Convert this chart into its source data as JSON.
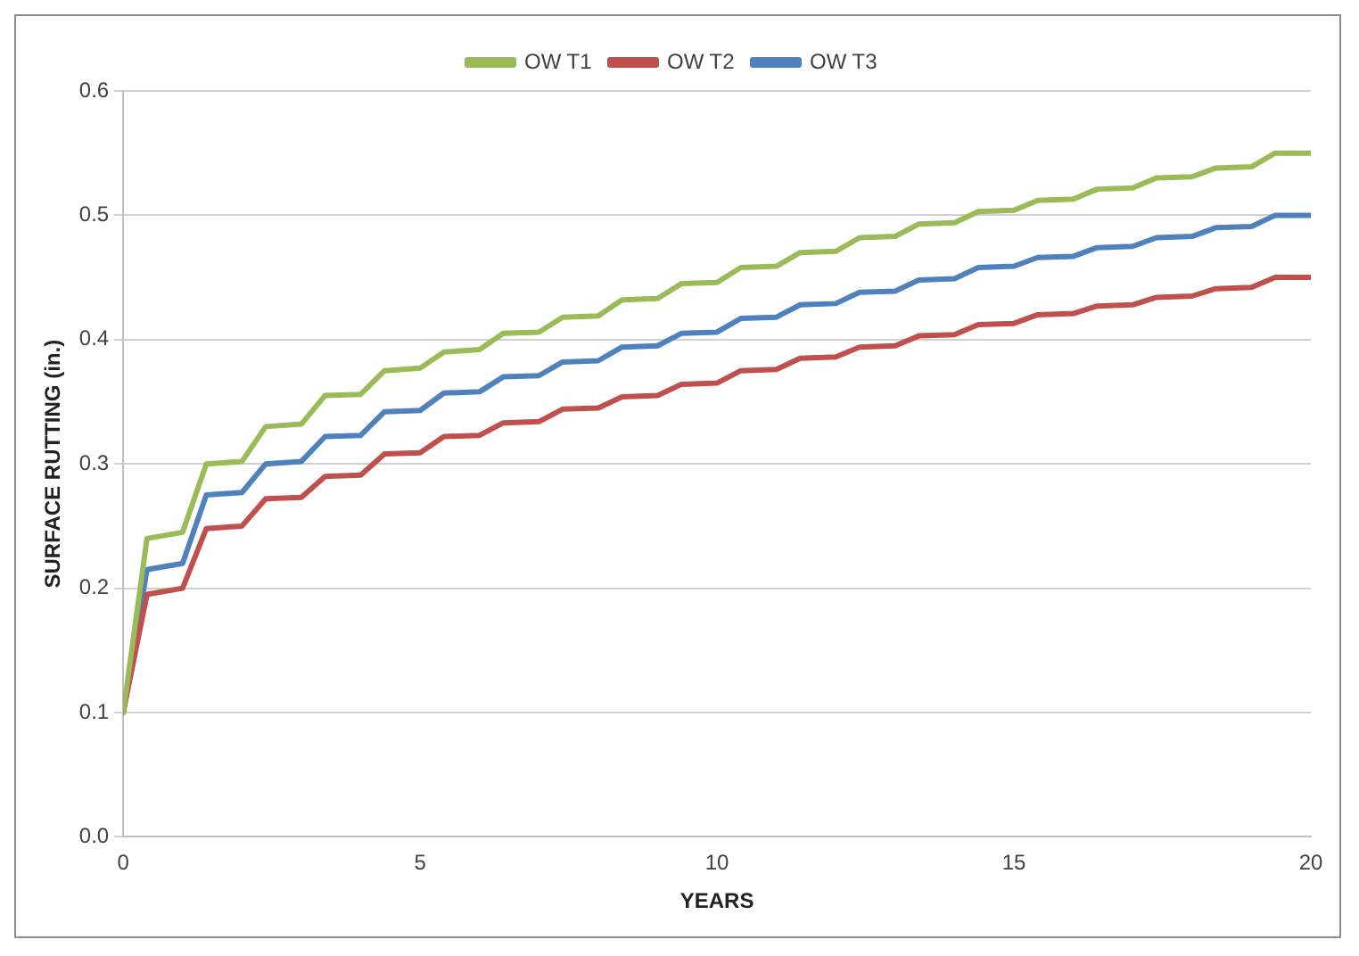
{
  "chart_data": {
    "type": "line",
    "xlabel": "YEARS",
    "ylabel": "SURFACE RUTTING (in.)",
    "x": [
      0,
      0.4,
      1,
      1.4,
      2,
      2.4,
      3,
      3.4,
      4,
      4.4,
      5,
      5.4,
      6,
      6.4,
      7,
      7.4,
      8,
      8.4,
      9,
      9.4,
      10,
      10.4,
      11,
      11.4,
      12,
      12.4,
      13,
      13.4,
      14,
      14.4,
      15,
      15.4,
      16,
      16.4,
      17,
      17.4,
      18,
      18.4,
      19,
      19.4,
      20
    ],
    "series": [
      {
        "name": "OW T1",
        "color": "#9bbb59",
        "values": [
          0.1,
          0.24,
          0.245,
          0.3,
          0.302,
          0.33,
          0.332,
          0.355,
          0.356,
          0.375,
          0.377,
          0.39,
          0.392,
          0.405,
          0.406,
          0.418,
          0.419,
          0.432,
          0.433,
          0.445,
          0.446,
          0.458,
          0.459,
          0.47,
          0.471,
          0.482,
          0.483,
          0.493,
          0.494,
          0.503,
          0.504,
          0.512,
          0.513,
          0.521,
          0.522,
          0.53,
          0.531,
          0.538,
          0.539,
          0.55,
          0.55
        ]
      },
      {
        "name": "OW T2",
        "color": "#c0504d",
        "values": [
          0.1,
          0.195,
          0.2,
          0.248,
          0.25,
          0.272,
          0.273,
          0.29,
          0.291,
          0.308,
          0.309,
          0.322,
          0.323,
          0.333,
          0.334,
          0.344,
          0.345,
          0.354,
          0.355,
          0.364,
          0.365,
          0.375,
          0.376,
          0.385,
          0.386,
          0.394,
          0.395,
          0.403,
          0.404,
          0.412,
          0.413,
          0.42,
          0.421,
          0.427,
          0.428,
          0.434,
          0.435,
          0.441,
          0.442,
          0.45,
          0.45
        ]
      },
      {
        "name": "OW T3",
        "color": "#4f81bd",
        "values": [
          0.1,
          0.215,
          0.22,
          0.275,
          0.277,
          0.3,
          0.302,
          0.322,
          0.323,
          0.342,
          0.343,
          0.357,
          0.358,
          0.37,
          0.371,
          0.382,
          0.383,
          0.394,
          0.395,
          0.405,
          0.406,
          0.417,
          0.418,
          0.428,
          0.429,
          0.438,
          0.439,
          0.448,
          0.449,
          0.458,
          0.459,
          0.466,
          0.467,
          0.474,
          0.475,
          0.482,
          0.483,
          0.49,
          0.491,
          0.5,
          0.5
        ]
      }
    ],
    "xlim": [
      0,
      20
    ],
    "xticks": [
      0,
      5,
      10,
      15,
      20
    ],
    "ylim": [
      0,
      0.6
    ],
    "yticks": [
      {
        "value": 0,
        "label": "0.0"
      },
      0.1,
      0.2,
      0.3,
      0.4,
      0.5,
      0.6
    ],
    "grid": "y",
    "legend": "top",
    "marker": "none",
    "line_style": "solid"
  }
}
